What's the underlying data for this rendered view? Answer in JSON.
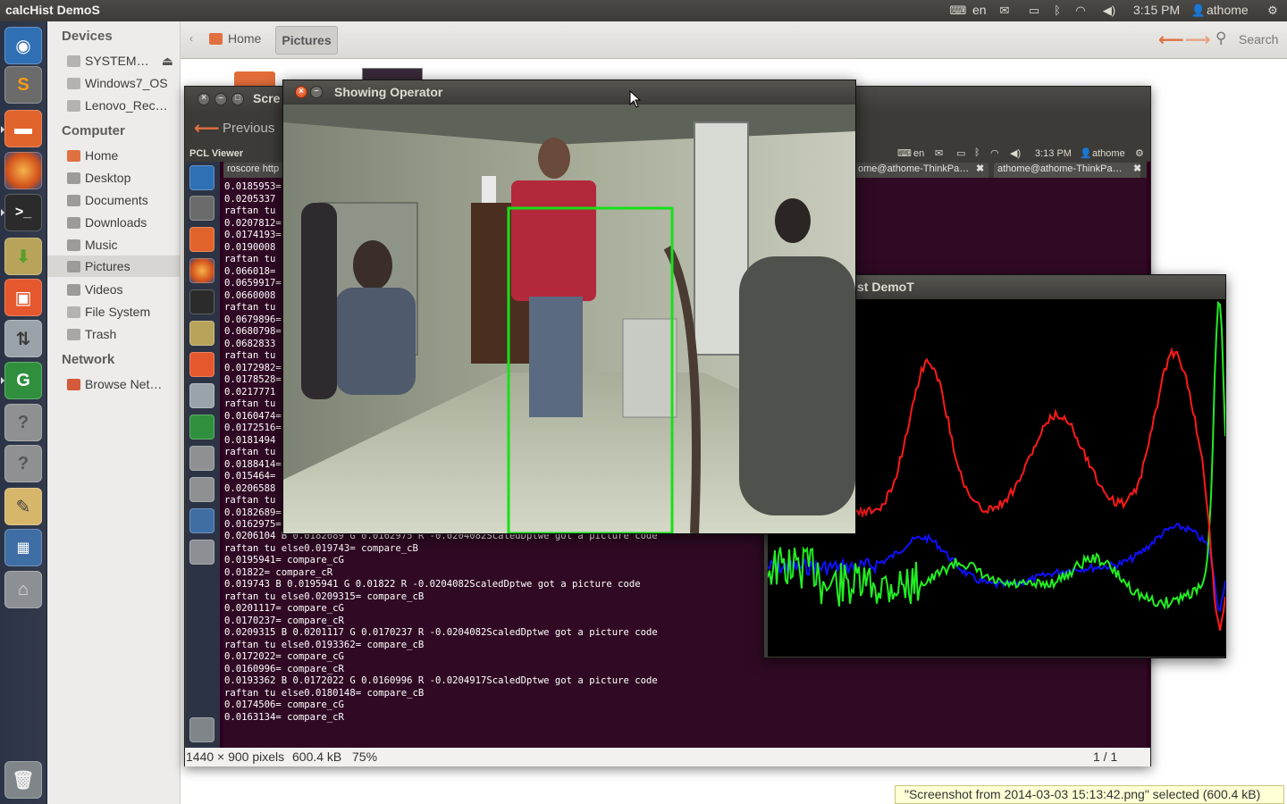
{
  "top_panel": {
    "app_title": "calcHist DemoS",
    "keyboard": "en",
    "clock": "3:15 PM",
    "user": "athome",
    "icons": [
      "keyboard-icon",
      "mail-icon",
      "battery-icon",
      "bluetooth-icon",
      "wifi-icon",
      "volume-icon",
      "gear-icon"
    ]
  },
  "launcher": {
    "items": [
      "dash-home",
      "sublime-text",
      "files",
      "firefox",
      "terminal",
      "archive-manager",
      "software-center",
      "update-manager",
      "gitg",
      "unknown-app",
      "unknown-app",
      "text-editor",
      "workspace-switcher",
      "drive",
      "trash"
    ]
  },
  "nautilus": {
    "sections": {
      "devices": "Devices",
      "computer": "Computer",
      "network": "Network"
    },
    "devices": [
      "SYSTEM…",
      "Windows7_OS",
      "Lenovo_Rec…"
    ],
    "computer": [
      "Home",
      "Desktop",
      "Documents",
      "Downloads",
      "Music",
      "Pictures",
      "Videos",
      "File System",
      "Trash"
    ],
    "network": [
      "Browse Net…"
    ],
    "breadcrumb": [
      "Home",
      "Pictures"
    ],
    "search_label": "Search"
  },
  "image_viewer": {
    "title": "Scre",
    "previous_label": "Previous",
    "status_dims": "1440 × 900 pixels",
    "status_size": "600.4 kB",
    "status_zoom": "75%",
    "status_page": "1 / 1"
  },
  "embedded": {
    "pcl_viewer": "PCL Viewer",
    "keyboard": "en",
    "clock": "3:13 PM",
    "user": "athome",
    "terminal_tabs": [
      "roscore http",
      "ome@athome-ThinkPa…",
      "athome@athome-ThinkPa…"
    ],
    "terminal_lines_short": [
      "0.0185953=",
      "0.0205337",
      "raftan tu",
      "0.0207812=",
      "0.0174193=",
      "0.0190008",
      "raftan tu",
      "0.066018=",
      "0.0659917=",
      "0.0660008",
      "raftan tu",
      "0.0679896=",
      "0.0680798=",
      "0.0682833",
      "raftan tu",
      "0.0172982=",
      "0.0178528=",
      "0.0217771",
      "raftan tu",
      "0.0160474=",
      "0.0172516=",
      "0.0181494",
      "raftan tu",
      "0.0188414=",
      "0.015464=",
      "0.0206588",
      "raftan tu",
      "0.0182689=",
      "0.0162975="
    ],
    "terminal_lines_full": [
      "0.0206104 B 0.0182689 G 0.0162975 R -0.0204082ScaledDptwe got a picture code",
      "raftan tu else0.019743= compare_cB",
      "0.0195941= compare_cG",
      "0.01822= compare_cR",
      "0.019743 B 0.0195941 G 0.01822 R -0.0204082ScaledDptwe got a picture code",
      "raftan tu else0.0209315= compare_cB",
      "0.0201117= compare_cG",
      "0.0170237= compare_cR",
      "0.0209315 B 0.0201117 G 0.0170237 R -0.0204082ScaledDptwe got a picture code",
      "raftan tu else0.0193362= compare_cB",
      "0.0172022= compare_cG",
      "0.0160996= compare_cR",
      "0.0193362 B 0.0172022 G 0.0160996 R -0.0204917ScaledDptwe got a picture code",
      "raftan tu else0.0180148= compare_cB",
      "0.0174506= compare_cG",
      "0.0163134= compare_cR"
    ]
  },
  "operator_window": {
    "title": "Showing Operator"
  },
  "hist_window": {
    "title": "st DemoT",
    "colors": {
      "red": "#ff1a1a",
      "green": "#22ee22",
      "blue": "#1010ff"
    }
  },
  "tooltip": "\"Screenshot from 2014-03-03 15:13:42.png\" selected (600.4 kB)",
  "colors": {
    "accent": "#dd4814",
    "panel": "#3c3b37",
    "terminal_bg": "#300a24",
    "launcher": "#2b3346"
  }
}
